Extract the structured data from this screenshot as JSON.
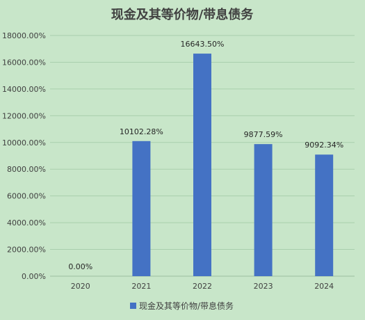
{
  "chart_data": {
    "type": "bar",
    "title": "现金及其等价物/带息债务",
    "categories": [
      "2020",
      "2021",
      "2022",
      "2023",
      "2024"
    ],
    "series": [
      {
        "name": "现金及其等价物/带息债务",
        "values": [
          0.0,
          10102.28,
          16643.5,
          9877.59,
          9092.34
        ],
        "data_labels": [
          "0.00%",
          "10102.28%",
          "16643.50%",
          "9877.59%",
          "9092.34%"
        ],
        "color": "#4472c4"
      }
    ],
    "ylim": [
      0,
      18000
    ],
    "yticks": [
      0,
      2000,
      4000,
      6000,
      8000,
      10000,
      12000,
      14000,
      16000,
      18000
    ],
    "ytick_labels": [
      "0.00%",
      "2000.00%",
      "4000.00%",
      "6000.00%",
      "8000.00%",
      "10000.00%",
      "12000.00%",
      "14000.00%",
      "16000.00%",
      "18000.00%"
    ],
    "grid": true,
    "legend_position": "bottom",
    "colors": {
      "background": "#c8e6c9",
      "gridline": "#a9cfad",
      "bar": "#4472c4"
    }
  }
}
